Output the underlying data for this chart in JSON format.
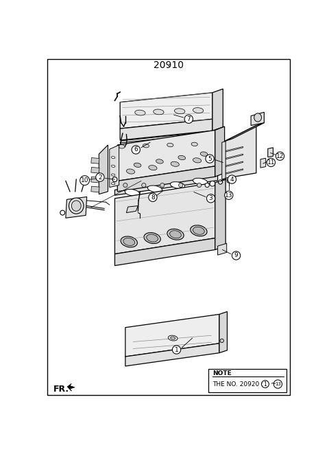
{
  "title": "20910",
  "bg_color": "#ffffff",
  "border_color": "#000000",
  "text_color": "#000000",
  "fig_width": 4.8,
  "fig_height": 6.55,
  "dpi": 100,
  "note_line1": "NOTE",
  "note_line2": "THE NO. 20920 :",
  "fr_label": "FR.",
  "lw_main": 0.9,
  "lw_thin": 0.55,
  "part_fill": "#f2f2f2",
  "part_edge": "#111111"
}
